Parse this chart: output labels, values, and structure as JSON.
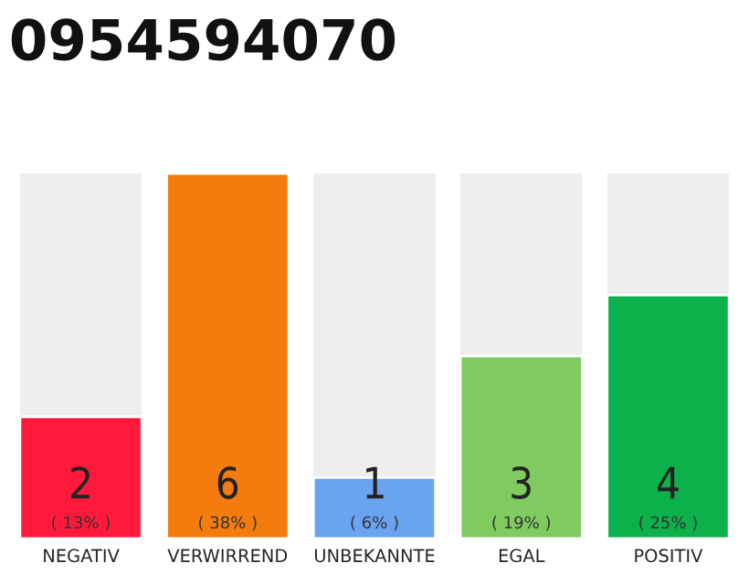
{
  "chart_data": {
    "type": "bar",
    "title": "0954594070",
    "categories": [
      "NEGATIV",
      "VERWIRREND",
      "UNBEKANNTE",
      "EGAL",
      "POSITIV"
    ],
    "values": [
      2,
      6,
      1,
      3,
      4
    ],
    "colors": [
      "#ff1a3c",
      "#f47c0e",
      "#6aa3f0",
      "#7fcb5f",
      "#0db14b"
    ],
    "data_labels": true,
    "annotations": [
      "( 13% )",
      "( 38% )",
      "( 6% )",
      "( 19% )",
      "( 25% )"
    ],
    "grid": false,
    "legend": false
  }
}
